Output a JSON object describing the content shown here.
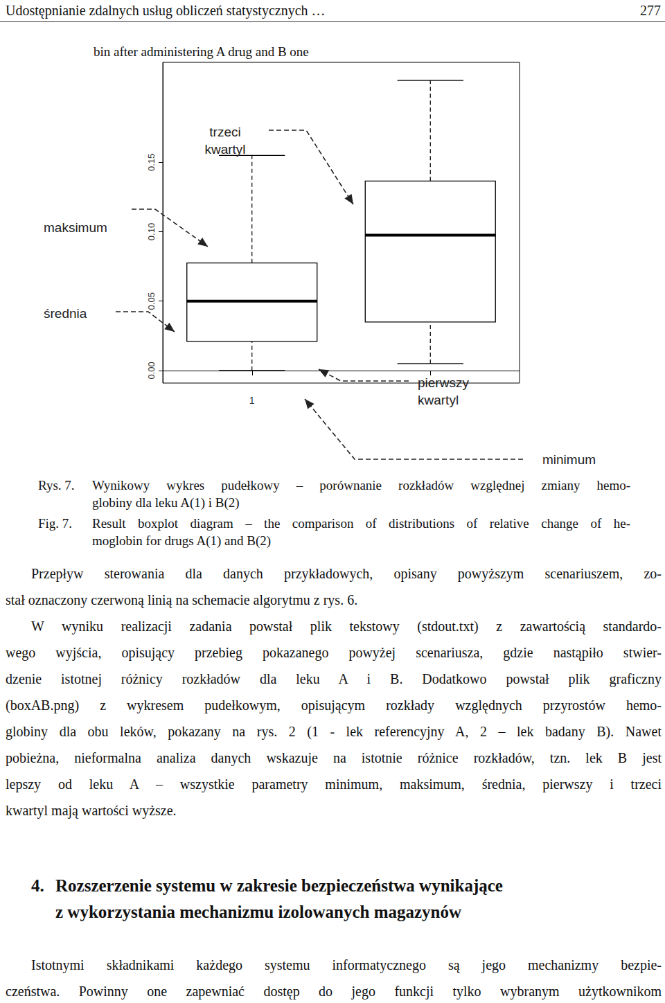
{
  "header": {
    "title": "Udostępnianie zdalnych usług obliczeń statystycznych …",
    "page": "277"
  },
  "chart_data": {
    "type": "boxplot",
    "title": "bin after administering A drug and B one",
    "categories": [
      "1",
      null
    ],
    "values": [
      [
        0.0,
        0.021,
        0.05,
        0.0775,
        0.155
      ],
      [
        0.005,
        0.035,
        0.0975,
        0.1365,
        0.209
      ]
    ],
    "color": "#000000",
    "ylim": [
      -0.009,
      0.222
    ],
    "yticks": [
      {
        "value": 0,
        "label": "0.00"
      },
      {
        "value": 0.05,
        "label": "0.05"
      },
      {
        "value": 0.1,
        "label": "0.10"
      },
      {
        "value": 0.15,
        "label": "0.15"
      }
    ],
    "grid": false,
    "annotations": [
      {
        "text": "trzeci kwartyl"
      },
      {
        "text": "maksimum"
      },
      {
        "text": "średnia"
      },
      {
        "text": "pierwszy kwartyl"
      },
      {
        "text": "minimum"
      }
    ]
  },
  "captions": [
    {
      "label": "Rys. 7.",
      "lines": [
        "Wynikowy wykres pudełkowy – porównanie rozkładów względnej zmiany hemo-",
        "globiny dla leku A(1) i B(2)"
      ]
    },
    {
      "label": "Fig. 7.",
      "lines": [
        "Result boxplot diagram – the comparison of distributions of relative change of he-",
        "moglobin for drugs A(1) and B(2)"
      ]
    }
  ],
  "paragraphs": [
    {
      "lines": [
        "Przepływ sterowania dla danych przykładowych, opisany powyższym scenariuszem, zo-",
        "stał oznaczony czerwoną linią na schemacie algorytmu z rys. 6."
      ]
    },
    {
      "lines": [
        "W wyniku realizacji zadania powstał plik tekstowy (stdout.txt) z zawartością standardo-",
        "wego wyjścia, opisujący przebieg pokazanego powyżej scenariusza, gdzie nastąpiło stwier-",
        "dzenie istotnej różnicy rozkładów dla leku A i B. Dodatkowo powstał plik graficzny",
        "(boxAB.png) z wykresem pudełkowym, opisującym rozkłady względnych przyrostów hemo-",
        "globiny dla obu leków, pokazany na rys. 2 (1 - lek referencyjny A, 2 – lek badany B). Nawet",
        "pobieżna, nieformalna analiza danych wskazuje na istotnie różnice rozkładów, tzn. lek B jest",
        "lepszy od leku A – wszystkie parametry minimum, maksimum, średnia, pierwszy i trzeci",
        "kwartyl mają wartości wyższe."
      ]
    },
    {
      "lines": [
        "Istotnymi składnikami każdego systemu informatycznego są jego mechanizmy bezpie-",
        "czeństwa. Powinny one zapewniać dostęp do jego funkcji tylko wybranym użytkownikom"
      ]
    }
  ],
  "section": {
    "number": "4.",
    "lines": [
      "Rozszerzenie systemu w zakresie bezpieczeństwa wynikające",
      "z wykorzystania mechanizmu izolowanych magazynów"
    ]
  }
}
